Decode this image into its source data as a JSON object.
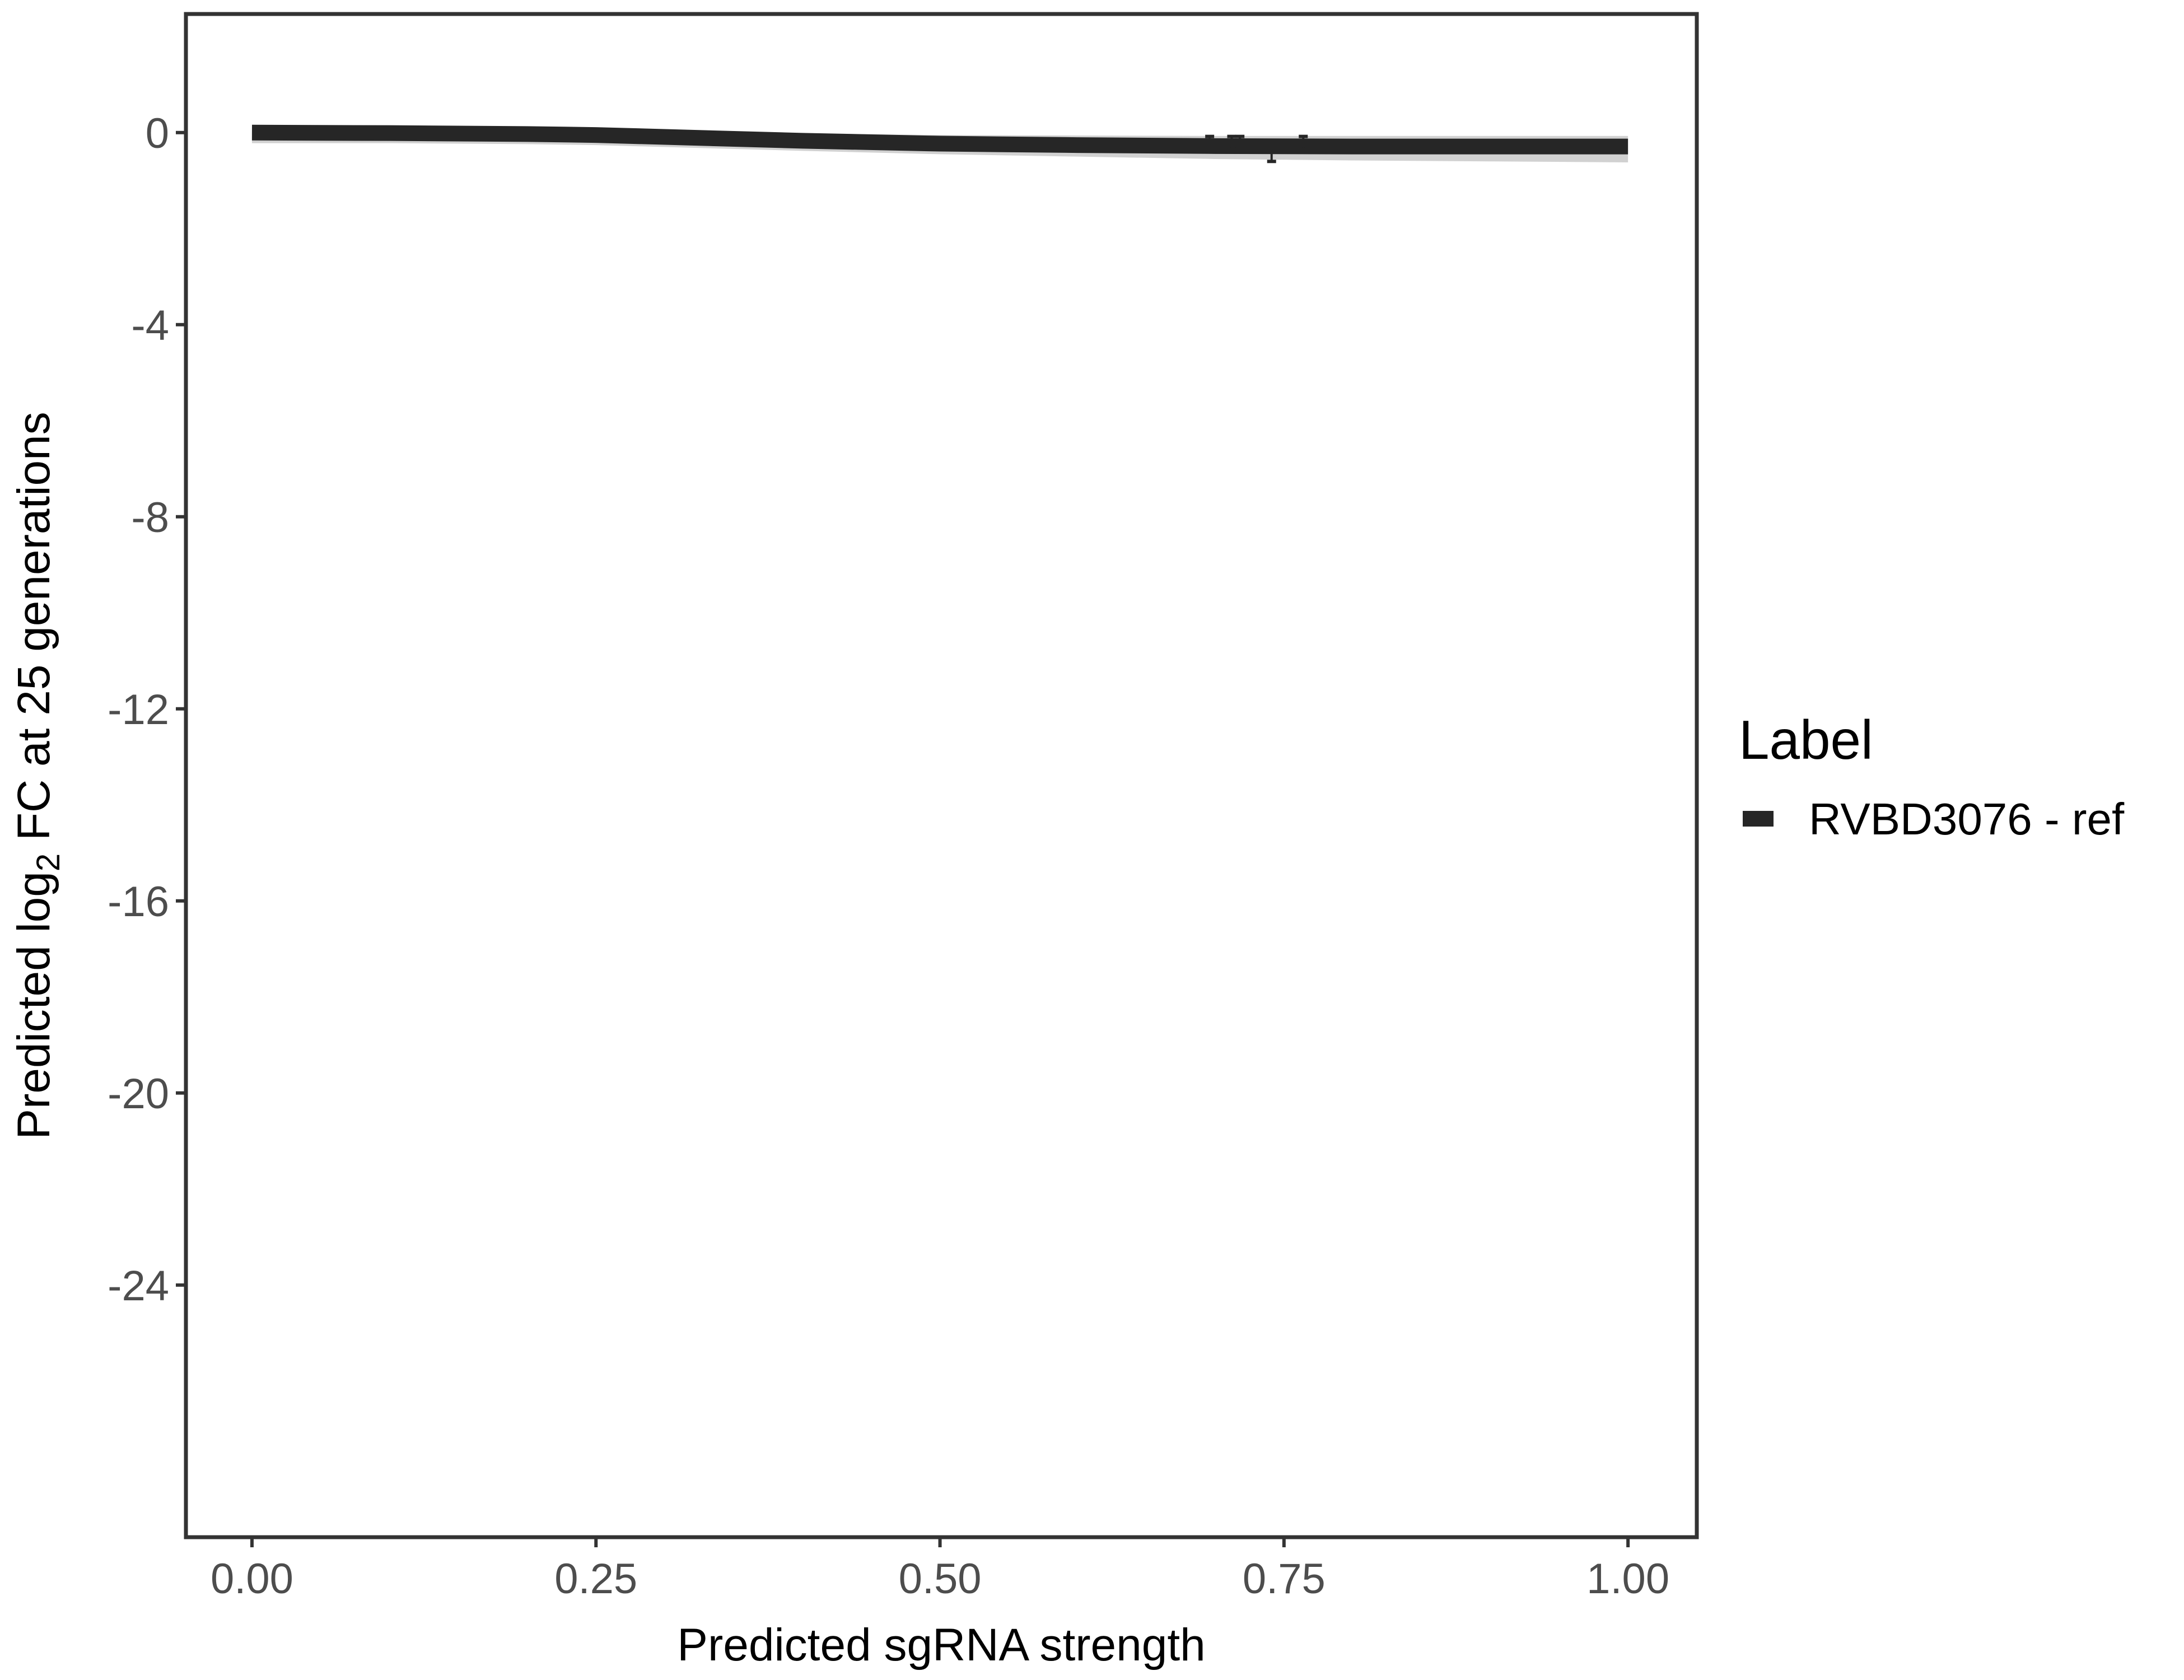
{
  "chart_data": {
    "type": "line",
    "xlabel": "Predicted sgRNA strength",
    "ylabel_parts": [
      "Predicted  log",
      "2",
      " FC at 25 generations"
    ],
    "xlim": [
      -0.048,
      1.05
    ],
    "ylim": [
      -29.25,
      2.47
    ],
    "x_ticks": [
      0,
      0.25,
      0.5,
      0.75,
      1
    ],
    "x_tick_labels": [
      "0.00",
      "0.25",
      "0.50",
      "0.75",
      "1.00"
    ],
    "y_ticks": [
      0,
      -4,
      -8,
      -12,
      -16,
      -20,
      -24
    ],
    "y_tick_labels": [
      "0",
      "-4",
      "-8",
      "-12",
      "-16",
      "-20",
      "-24"
    ],
    "grid": false,
    "legend": {
      "title": "Label",
      "position": "right",
      "entries": [
        "RVBD3076 - ref"
      ]
    },
    "series": [
      {
        "name": "RVBD3076 - ref",
        "color": "#262626",
        "x": [
          0,
          0.1,
          0.2,
          0.25,
          0.3,
          0.4,
          0.5,
          0.6,
          0.7,
          0.8,
          0.9,
          1.0
        ],
        "y": [
          0,
          -0.01,
          -0.03,
          -0.05,
          -0.09,
          -0.17,
          -0.23,
          -0.26,
          -0.28,
          -0.29,
          -0.29,
          -0.29
        ],
        "ci_lower": [
          -0.22,
          -0.22,
          -0.24,
          -0.26,
          -0.3,
          -0.38,
          -0.45,
          -0.5,
          -0.55,
          -0.58,
          -0.6,
          -0.62
        ],
        "ci_upper": [
          0.03,
          0.03,
          0.02,
          0.01,
          0.0,
          -0.02,
          -0.05,
          -0.06,
          -0.07,
          -0.07,
          -0.07,
          -0.07
        ]
      }
    ],
    "points": [
      {
        "x": 0.696,
        "y": -0.25,
        "ymin": -0.35,
        "ymax": -0.08
      },
      {
        "x": 0.712,
        "y": -0.25,
        "ymin": -0.35,
        "ymax": -0.08
      },
      {
        "x": 0.718,
        "y": -0.25,
        "ymin": -0.35,
        "ymax": -0.08
      },
      {
        "x": 0.741,
        "y": -0.3,
        "ymin": -0.6,
        "ymax": -0.25
      },
      {
        "x": 0.764,
        "y": -0.25,
        "ymin": -0.35,
        "ymax": -0.08
      }
    ]
  }
}
